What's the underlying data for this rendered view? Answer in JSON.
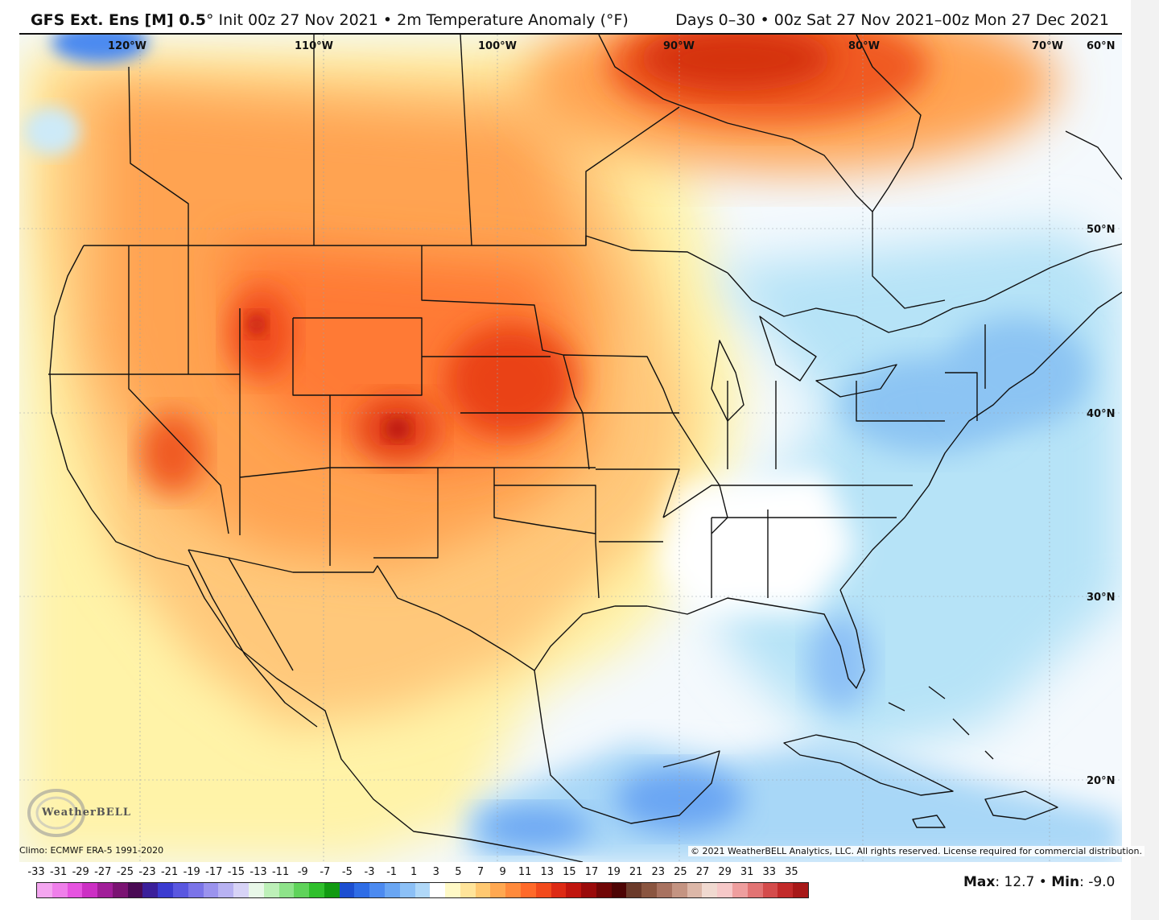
{
  "header": {
    "model": "GFS Ext. Ens [M] 0.5",
    "degree": "°",
    "init": "Init 00z 27 Nov 2021",
    "field": "2m Temperature Anomaly (°F)",
    "days": "Days 0–30",
    "range": "00z Sat 27 Nov 2021–00z Mon 27 Dec 2021",
    "bullet": "•"
  },
  "lon_labels": [
    "120°W",
    "110°W",
    "100°W",
    "90°W",
    "80°W",
    "70°W",
    "60°N"
  ],
  "lat_labels": [
    "50°N",
    "40°N",
    "30°N",
    "20°N"
  ],
  "logo_text": "WeatherBELL",
  "climo": "Climo: ECMWF ERA-5 1991-2020",
  "copyright": "© 2021 WeatherBELL Analytics, LLC. All rights reserved. License required for commercial distribution.",
  "scale": {
    "labels": [
      "-33",
      "-31",
      "-29",
      "-27",
      "-25",
      "-23",
      "-21",
      "-19",
      "-17",
      "-15",
      "-13",
      "-11",
      "-9",
      "-7",
      "-5",
      "-3",
      "-1",
      "1",
      "3",
      "5",
      "7",
      "9",
      "11",
      "13",
      "15",
      "17",
      "19",
      "21",
      "23",
      "25",
      "27",
      "29",
      "31",
      "33",
      "35"
    ],
    "colors": [
      "#f4a6f0",
      "#ef7fea",
      "#e653e0",
      "#cc2fc4",
      "#a11e99",
      "#7a1372",
      "#4a0a54",
      "#3b1f9a",
      "#3b3bd0",
      "#5a57e0",
      "#7b74e8",
      "#9b93ee",
      "#b8b2f2",
      "#d7d3f6",
      "#e8f7e8",
      "#bdf0b8",
      "#8ee38a",
      "#5fd35a",
      "#2fbf2c",
      "#119a12",
      "#1c4fd1",
      "#2f6de6",
      "#4c8af0",
      "#6aa6f3",
      "#8cc0f6",
      "#b0d8f8",
      "#ffffff",
      "#fff9c6",
      "#ffe49a",
      "#ffc871",
      "#ffa851",
      "#ff8a3c",
      "#ff6a2a",
      "#f24a1c",
      "#dd2a14",
      "#c0150e",
      "#9a0a0a",
      "#700606",
      "#4d0404",
      "#6b3a2a",
      "#8a5540",
      "#a87260",
      "#c49482",
      "#dcb7a8",
      "#f0d9d0",
      "#f6c8c8",
      "#ee9e9e",
      "#e27474",
      "#d44c4c",
      "#c22a2a",
      "#a71818"
    ]
  },
  "maxmin": {
    "max_label": "Max",
    "max_value": "12.7",
    "min_label": "Min",
    "min_value": "-9.0"
  }
}
